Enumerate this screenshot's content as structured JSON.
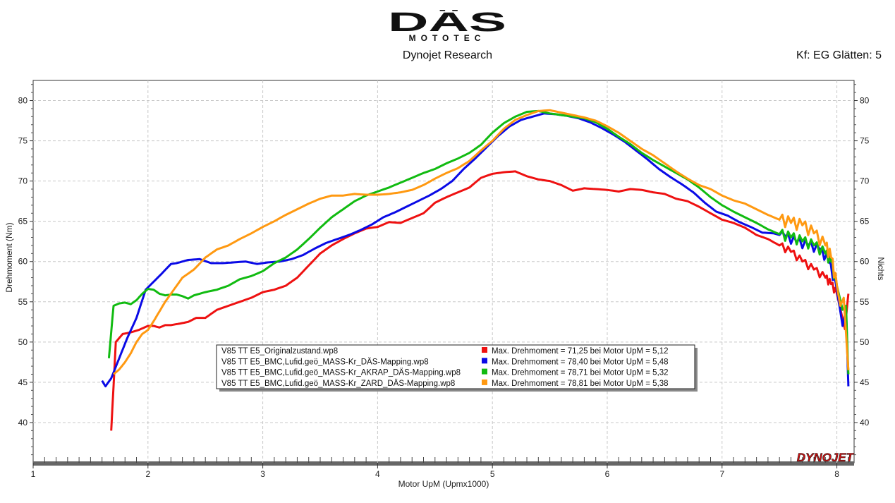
{
  "header": {
    "brand_top": "DÄS",
    "brand_bottom": "MOTOTEC",
    "subtitle": "Dynojet Research",
    "smoothing": "Kf: EG Glätten: 5"
  },
  "footer_logo": "DYNOJET",
  "colors": {
    "red": "#ee1111",
    "blue": "#0a0ae6",
    "green": "#11bb11",
    "orange": "#ff9911",
    "grid": "#c8c8c8"
  },
  "chart_data": {
    "type": "line",
    "xlabel": "Motor UpM (Upmx1000)",
    "ylabel": "Drehmoment (Nm)",
    "ylabel_right": "Nichts",
    "xlim": [
      1,
      8.15
    ],
    "ylim": [
      35,
      82.5
    ],
    "xticks": [
      "1",
      "2",
      "3",
      "4",
      "5",
      "6",
      "7",
      "8"
    ],
    "yticks": [
      "40",
      "45",
      "50",
      "55",
      "60",
      "65",
      "70",
      "75",
      "80"
    ],
    "grid": true,
    "legend": {
      "placement": "center",
      "entries": [
        {
          "file": "V85 TT E5_Originalzustand.wp8",
          "text": "Max. Drehmoment = 71,25 bei Motor UpM = 5,12",
          "color": "#ee1111"
        },
        {
          "file": "V85 TT E5_BMC,Lufid.geö_MASS-Kr_DÄS-Mapping.wp8",
          "text": "Max. Drehmoment = 78,40 bei Motor UpM = 5,48",
          "color": "#0a0ae6"
        },
        {
          "file": "V85 TT E5_BMC,Lufid.geö_MASS-Kr_AKRAP_DÄS-Mapping.wp8",
          "text": "Max. Drehmoment = 78,71 bei Motor UpM = 5,32",
          "color": "#11bb11"
        },
        {
          "file": "V85 TT E5_BMC,Lufid.geö_MASS-Kr_ZARD_DÄS-Mapping.wp8",
          "text": "Max. Drehmoment = 78,81 bei Motor UpM = 5,38",
          "color": "#ff9911"
        }
      ]
    },
    "series": [
      {
        "name": "V85 TT E5_Originalzustand.wp8",
        "color": "#ee1111",
        "x": [
          1.68,
          1.72,
          1.78,
          1.85,
          1.92,
          2.0,
          2.05,
          2.1,
          2.15,
          2.2,
          2.28,
          2.35,
          2.42,
          2.5,
          2.6,
          2.7,
          2.8,
          2.9,
          3.0,
          3.1,
          3.2,
          3.3,
          3.4,
          3.5,
          3.6,
          3.7,
          3.8,
          3.9,
          4.0,
          4.1,
          4.2,
          4.3,
          4.4,
          4.5,
          4.6,
          4.7,
          4.8,
          4.9,
          5.0,
          5.1,
          5.2,
          5.3,
          5.4,
          5.5,
          5.6,
          5.7,
          5.8,
          5.9,
          6.0,
          6.1,
          6.2,
          6.3,
          6.4,
          6.5,
          6.6,
          6.7,
          6.8,
          6.9,
          7.0,
          7.1,
          7.2,
          7.3,
          7.4,
          7.5,
          7.6,
          7.7,
          7.8,
          7.9,
          7.95,
          8.0,
          8.04,
          8.07,
          8.1
        ],
        "values": [
          39.0,
          50.0,
          51.0,
          51.2,
          51.5,
          52.0,
          52.0,
          51.8,
          52.1,
          52.1,
          52.3,
          52.5,
          53.0,
          53.0,
          54.0,
          54.5,
          55.0,
          55.5,
          56.2,
          56.5,
          57.0,
          58.0,
          59.5,
          61.0,
          62.0,
          62.8,
          63.5,
          64.1,
          64.3,
          64.9,
          64.8,
          65.4,
          66.0,
          67.3,
          68.0,
          68.6,
          69.2,
          70.4,
          70.9,
          71.1,
          71.2,
          70.6,
          70.2,
          70.0,
          69.5,
          68.8,
          69.1,
          69.0,
          68.9,
          68.7,
          69.0,
          68.9,
          68.6,
          68.4,
          67.8,
          67.5,
          66.8,
          66.0,
          65.2,
          64.8,
          64.2,
          63.3,
          62.8,
          62.0,
          61.2,
          60.0,
          59.0,
          58.0,
          57.2,
          56.0,
          53.5,
          51.6,
          56.0
        ]
      },
      {
        "name": "V85 TT E5_BMC,Lufid.geö_MASS-Kr_DÄS-Mapping.wp8",
        "color": "#0a0ae6",
        "x": [
          1.6,
          1.63,
          1.68,
          1.75,
          1.82,
          1.9,
          1.98,
          2.05,
          2.12,
          2.2,
          2.25,
          2.3,
          2.35,
          2.45,
          2.55,
          2.65,
          2.75,
          2.85,
          2.95,
          3.05,
          3.15,
          3.25,
          3.35,
          3.45,
          3.55,
          3.65,
          3.75,
          3.85,
          3.95,
          4.05,
          4.15,
          4.25,
          4.35,
          4.45,
          4.55,
          4.65,
          4.75,
          4.85,
          4.95,
          5.05,
          5.15,
          5.25,
          5.35,
          5.45,
          5.55,
          5.65,
          5.75,
          5.85,
          5.95,
          6.05,
          6.15,
          6.25,
          6.35,
          6.45,
          6.55,
          6.65,
          6.75,
          6.85,
          6.95,
          7.05,
          7.15,
          7.25,
          7.35,
          7.45,
          7.55,
          7.65,
          7.75,
          7.85,
          7.93,
          8.0,
          8.05,
          8.08,
          8.1
        ],
        "values": [
          45.2,
          44.5,
          45.5,
          48.0,
          50.5,
          53.0,
          56.5,
          57.5,
          58.5,
          59.7,
          59.8,
          60.0,
          60.2,
          60.3,
          59.8,
          59.8,
          59.9,
          60.0,
          59.7,
          59.9,
          60.0,
          60.3,
          60.8,
          61.6,
          62.3,
          62.8,
          63.3,
          63.9,
          64.6,
          65.5,
          66.1,
          66.8,
          67.5,
          68.2,
          69.0,
          70.0,
          71.5,
          72.8,
          74.2,
          75.6,
          76.8,
          77.6,
          78.0,
          78.4,
          78.3,
          78.1,
          77.8,
          77.3,
          76.6,
          75.8,
          74.9,
          73.8,
          72.7,
          71.5,
          70.5,
          69.6,
          68.6,
          67.3,
          66.2,
          65.7,
          64.9,
          64.3,
          63.6,
          63.5,
          63.1,
          62.4,
          62.0,
          61.5,
          60.0,
          56.5,
          52.0,
          54.0,
          44.5
        ]
      },
      {
        "name": "V85 TT E5_BMC,Lufid.geö_MASS-Kr_AKRAP_DÄS-Mapping.wp8",
        "color": "#11bb11",
        "x": [
          1.66,
          1.7,
          1.75,
          1.8,
          1.85,
          1.9,
          1.95,
          2.0,
          2.05,
          2.1,
          2.15,
          2.2,
          2.25,
          2.3,
          2.35,
          2.4,
          2.5,
          2.6,
          2.7,
          2.8,
          2.9,
          3.0,
          3.1,
          3.2,
          3.3,
          3.4,
          3.5,
          3.6,
          3.7,
          3.8,
          3.9,
          4.0,
          4.1,
          4.2,
          4.3,
          4.4,
          4.5,
          4.6,
          4.7,
          4.8,
          4.9,
          5.0,
          5.1,
          5.2,
          5.3,
          5.4,
          5.5,
          5.6,
          5.7,
          5.8,
          5.9,
          6.0,
          6.1,
          6.2,
          6.3,
          6.4,
          6.5,
          6.6,
          6.7,
          6.8,
          6.9,
          7.0,
          7.1,
          7.2,
          7.3,
          7.4,
          7.5,
          7.6,
          7.7,
          7.8,
          7.9,
          7.95,
          8.0,
          8.05,
          8.08,
          8.1
        ],
        "values": [
          48.0,
          54.5,
          54.8,
          54.9,
          54.7,
          55.2,
          56.0,
          56.6,
          56.5,
          56.0,
          55.8,
          55.9,
          55.9,
          55.7,
          55.4,
          55.8,
          56.2,
          56.5,
          57.0,
          57.8,
          58.2,
          58.8,
          59.8,
          60.5,
          61.5,
          62.8,
          64.2,
          65.5,
          66.5,
          67.5,
          68.2,
          68.7,
          69.2,
          69.8,
          70.4,
          71.0,
          71.5,
          72.2,
          72.8,
          73.5,
          74.5,
          76.0,
          77.2,
          78.0,
          78.6,
          78.7,
          78.4,
          78.2,
          78.0,
          77.8,
          77.3,
          76.5,
          75.5,
          74.6,
          73.5,
          72.6,
          71.8,
          71.0,
          70.2,
          69.2,
          68.0,
          67.0,
          66.2,
          65.5,
          64.8,
          64.0,
          63.4,
          63.0,
          62.5,
          62.0,
          61.0,
          60.0,
          57.0,
          54.0,
          54.5,
          46.0
        ]
      },
      {
        "name": "V85 TT E5_BMC,Lufid.geö_MASS-Kr_ZARD_DÄS-Mapping.wp8",
        "color": "#ff9911",
        "x": [
          1.7,
          1.75,
          1.8,
          1.85,
          1.9,
          1.95,
          2.0,
          2.05,
          2.1,
          2.15,
          2.2,
          2.3,
          2.4,
          2.5,
          2.6,
          2.7,
          2.8,
          2.9,
          3.0,
          3.1,
          3.2,
          3.3,
          3.4,
          3.5,
          3.6,
          3.7,
          3.8,
          3.9,
          4.0,
          4.1,
          4.2,
          4.3,
          4.4,
          4.5,
          4.6,
          4.7,
          4.8,
          4.9,
          5.0,
          5.1,
          5.2,
          5.3,
          5.4,
          5.5,
          5.6,
          5.7,
          5.8,
          5.9,
          6.0,
          6.1,
          6.2,
          6.3,
          6.4,
          6.5,
          6.6,
          6.7,
          6.8,
          6.9,
          7.0,
          7.1,
          7.2,
          7.3,
          7.4,
          7.5,
          7.6,
          7.7,
          7.8,
          7.9,
          7.95,
          8.0,
          8.03,
          8.06,
          8.1
        ],
        "values": [
          46.0,
          46.6,
          47.5,
          48.6,
          50.0,
          51.0,
          51.5,
          52.6,
          53.8,
          55.0,
          56.0,
          58.0,
          59.0,
          60.5,
          61.5,
          62.0,
          62.8,
          63.5,
          64.3,
          65.0,
          65.8,
          66.5,
          67.2,
          67.8,
          68.2,
          68.2,
          68.4,
          68.3,
          68.3,
          68.4,
          68.6,
          68.9,
          69.5,
          70.3,
          71.0,
          71.6,
          72.5,
          73.8,
          75.0,
          76.5,
          77.6,
          78.2,
          78.7,
          78.8,
          78.5,
          78.2,
          77.9,
          77.5,
          76.8,
          76.0,
          75.0,
          74.0,
          73.2,
          72.2,
          71.2,
          70.3,
          69.5,
          69.0,
          68.2,
          67.6,
          67.2,
          66.5,
          65.8,
          65.2,
          64.8,
          64.5,
          63.5,
          62.0,
          60.5,
          57.0,
          54.5,
          55.5,
          46.5
        ]
      }
    ]
  }
}
